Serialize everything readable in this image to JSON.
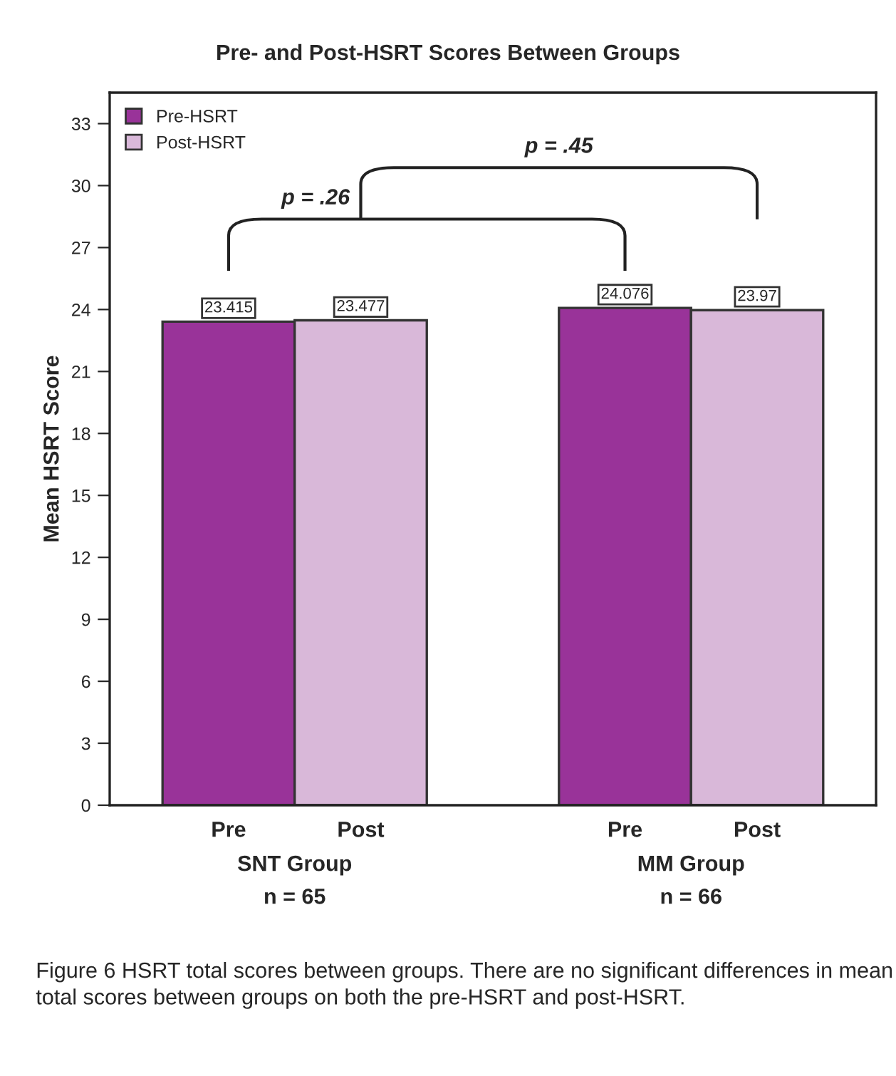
{
  "chart_data": {
    "type": "bar",
    "title": "Pre- and Post-HSRT Scores Between Groups",
    "ylabel": "Mean HSRT Score",
    "categories": [
      "Pre",
      "Post",
      null,
      "Pre",
      "Post"
    ],
    "series": [
      {
        "name": "Pre-HSRT",
        "color": "#993399",
        "values": [
          23.415,
          null,
          null,
          24.076,
          null
        ]
      },
      {
        "name": "Post-HSRT",
        "color": "#d9b8d9",
        "values": [
          null,
          23.477,
          null,
          null,
          23.97
        ]
      }
    ],
    "ylim": [
      0,
      34.5
    ],
    "yticks": [
      0,
      3,
      6,
      9,
      12,
      15,
      18,
      21,
      24,
      27,
      30,
      33
    ],
    "grid": false,
    "legend": "top left",
    "data_labels": true,
    "annotations": [
      "p = .26",
      "p = .45",
      "SNT Group\nn = 65",
      "MM Group\nn = 66",
      "Figure 6 HSRT total scores between groups. There are no significant differences in mean total scores between groups on both the pre-HSRT and post-HSRT."
    ]
  }
}
